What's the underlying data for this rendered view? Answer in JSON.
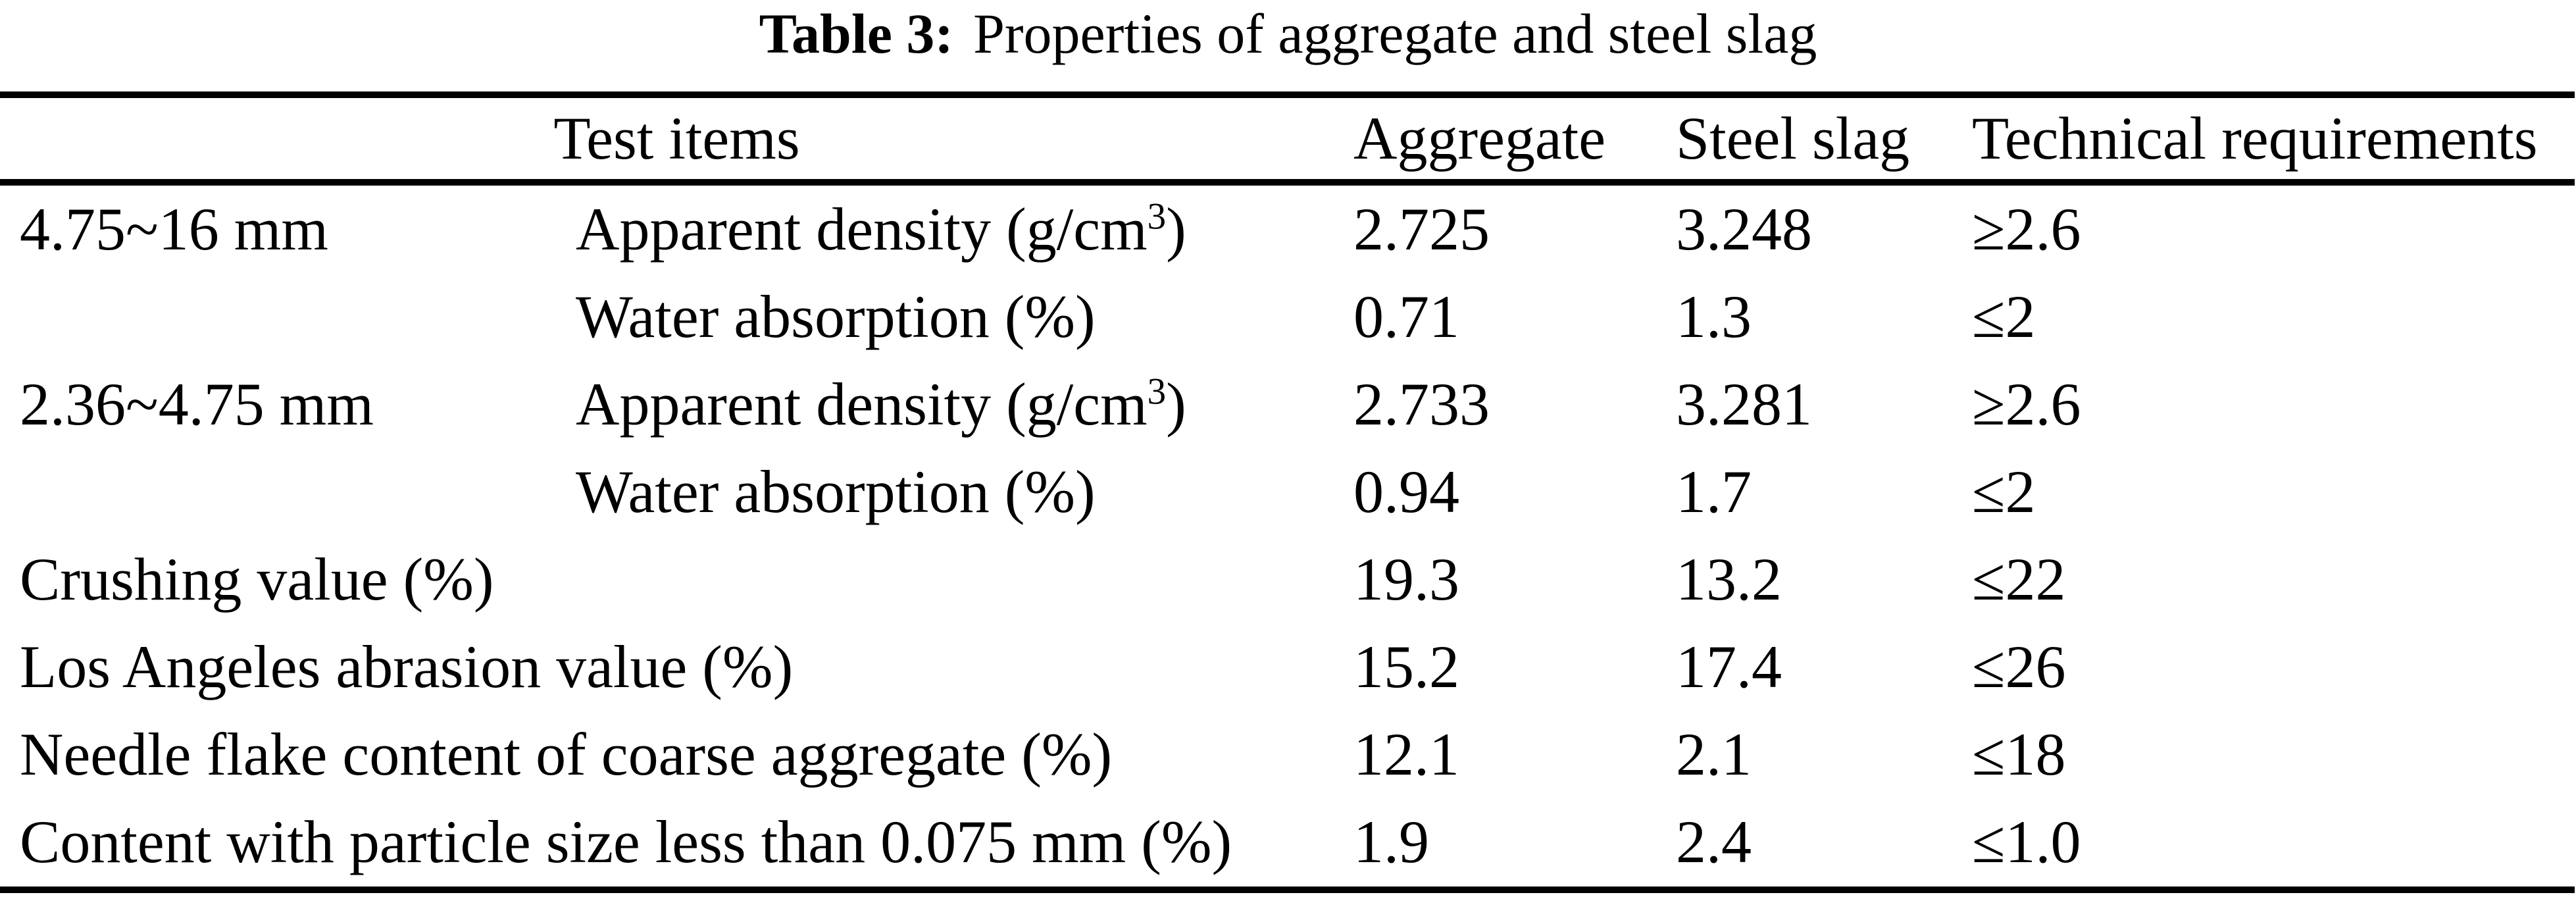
{
  "title": {
    "label": "Table 3:",
    "text": "Properties of aggregate and steel slag"
  },
  "colors": {
    "text": "#000000",
    "background": "#ffffff",
    "rule": "#000000"
  },
  "table": {
    "headers": {
      "test_items": "Test items",
      "aggregate": "Aggregate",
      "steel_slag": "Steel slag",
      "technical_requirements": "Technical requirements"
    },
    "rows": [
      {
        "group": "4.75~16 mm",
        "item": "Apparent density (g/cm",
        "item_sup": "3",
        "item_end": ")",
        "aggregate": "2.725",
        "steel_slag": "3.248",
        "requirement": "≥2.6"
      },
      {
        "group": "",
        "item": "Water absorption (%)",
        "item_sup": "",
        "item_end": "",
        "aggregate": "0.71",
        "steel_slag": "1.3",
        "requirement": "≤2"
      },
      {
        "group": "2.36~4.75 mm",
        "item": "Apparent density (g/cm",
        "item_sup": "3",
        "item_end": ")",
        "aggregate": "2.733",
        "steel_slag": "3.281",
        "requirement": "≥2.6"
      },
      {
        "group": "",
        "item": "Water absorption (%)",
        "item_sup": "",
        "item_end": "",
        "aggregate": "0.94",
        "steel_slag": "1.7",
        "requirement": "≤2"
      },
      {
        "group": "Crushing value (%)",
        "item": "",
        "item_sup": "",
        "item_end": "",
        "aggregate": "19.3",
        "steel_slag": "13.2",
        "requirement": "≤22"
      },
      {
        "group": "Los Angeles abrasion value (%)",
        "item": "",
        "item_sup": "",
        "item_end": "",
        "aggregate": "15.2",
        "steel_slag": "17.4",
        "requirement": "≤26"
      },
      {
        "group": "Needle flake content of coarse aggregate (%)",
        "item": "",
        "item_sup": "",
        "item_end": "",
        "aggregate": "12.1",
        "steel_slag": "2.1",
        "requirement": "≤18"
      },
      {
        "group": "Content with particle size less than 0.075 mm (%)",
        "item": "",
        "item_sup": "",
        "item_end": "",
        "aggregate": "1.9",
        "steel_slag": "2.4",
        "requirement": "≤1.0"
      }
    ]
  }
}
